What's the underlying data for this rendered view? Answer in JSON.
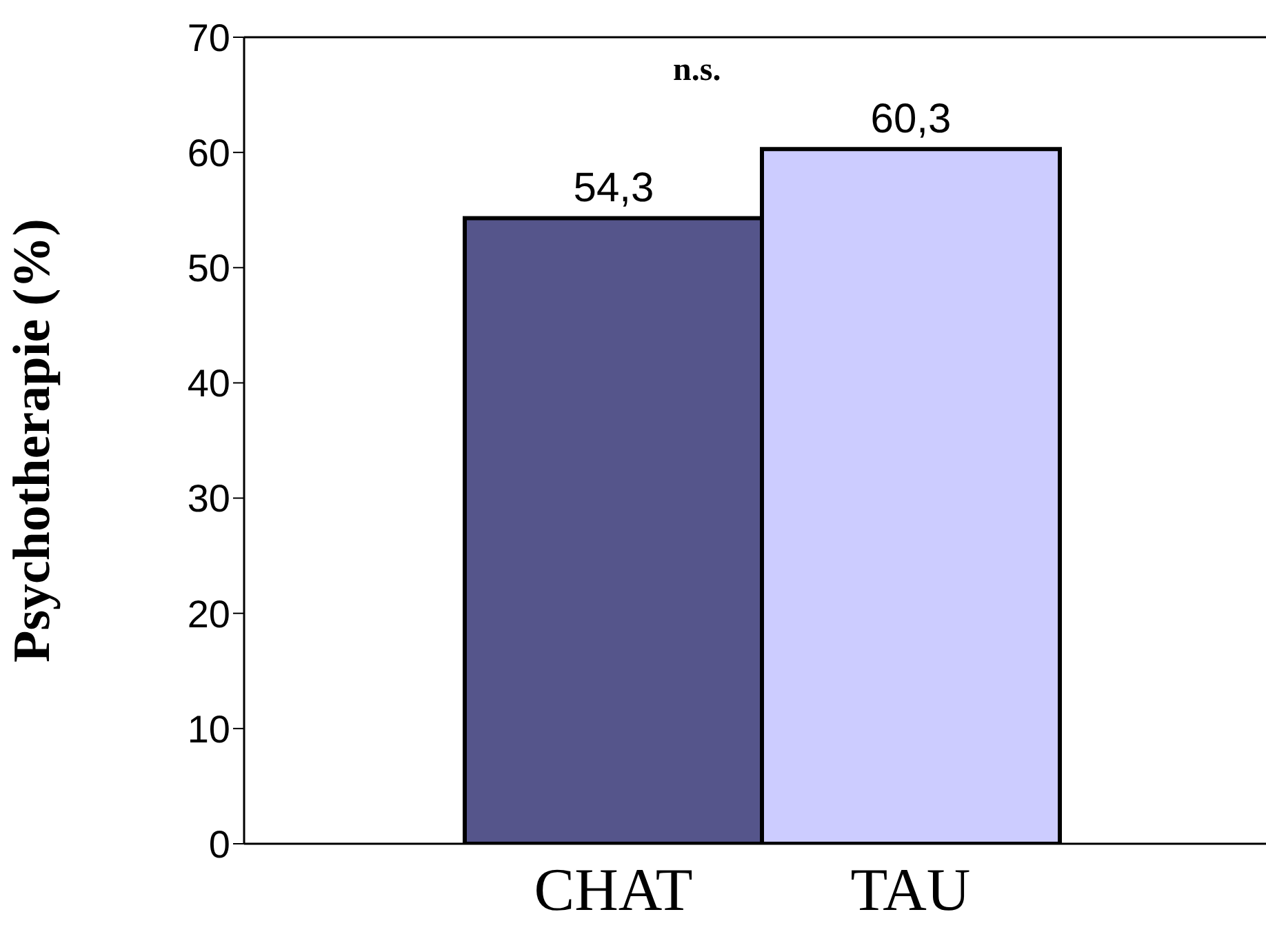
{
  "chart_data": {
    "type": "bar",
    "ylabel": "Psychotherapie  (%)",
    "categories": [
      "CHAT",
      "TAU"
    ],
    "values": [
      54.3,
      60.3
    ],
    "colors": [
      "#55558b",
      "#ccccff"
    ],
    "value_labels": [
      "54,3",
      "60,3"
    ],
    "ylim": [
      0,
      70
    ],
    "yticks": [
      0,
      10,
      20,
      30,
      40,
      50,
      60,
      70
    ],
    "grid": false,
    "annotations": [
      "n.s."
    ]
  }
}
